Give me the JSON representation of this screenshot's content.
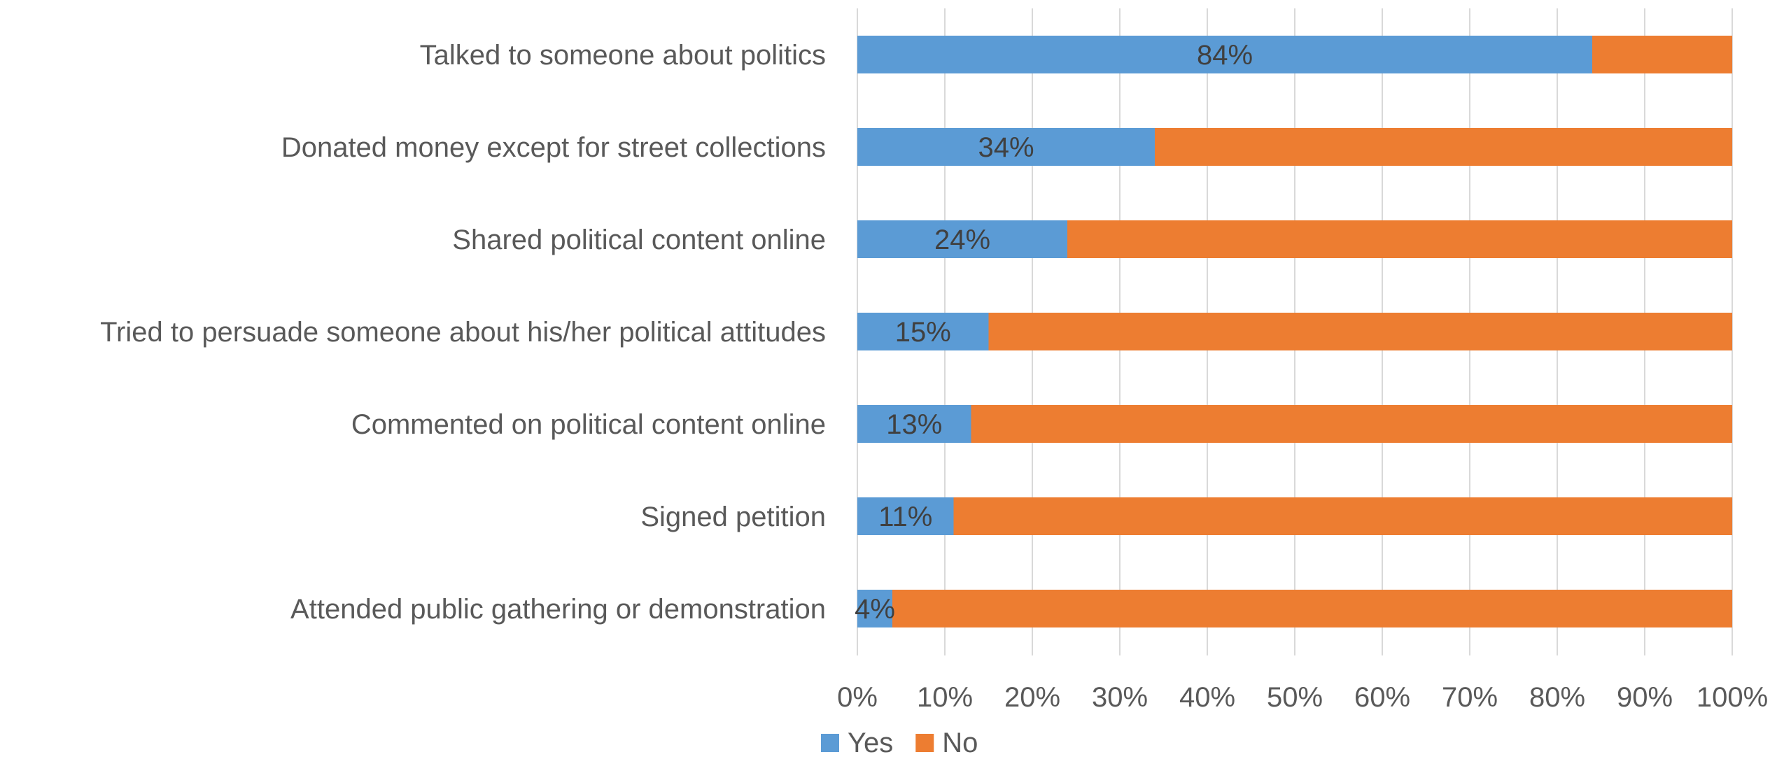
{
  "chart_data": {
    "type": "bar",
    "orientation": "horizontal",
    "stacked": "100%",
    "categories": [
      "Talked to someone about politics",
      "Donated money except for street collections",
      "Shared political content online",
      "Tried to persuade someone about his/her political attitudes",
      "Commented on political content online",
      "Signed petition",
      "Attended public gathering or demonstration"
    ],
    "series": [
      {
        "name": "Yes",
        "color": "#5B9BD5",
        "values": [
          84,
          34,
          24,
          15,
          13,
          11,
          4
        ],
        "data_labels": [
          "84%",
          "34%",
          "24%",
          "15%",
          "13%",
          "11%",
          "4%"
        ]
      },
      {
        "name": "No",
        "color": "#ED7D31",
        "values": [
          16,
          66,
          76,
          85,
          87,
          89,
          96
        ]
      }
    ],
    "x_ticks": [
      "0%",
      "10%",
      "20%",
      "30%",
      "40%",
      "50%",
      "60%",
      "70%",
      "80%",
      "90%",
      "100%"
    ],
    "xlim": [
      0,
      100
    ],
    "grid": "vertical",
    "legend": "bottom"
  }
}
